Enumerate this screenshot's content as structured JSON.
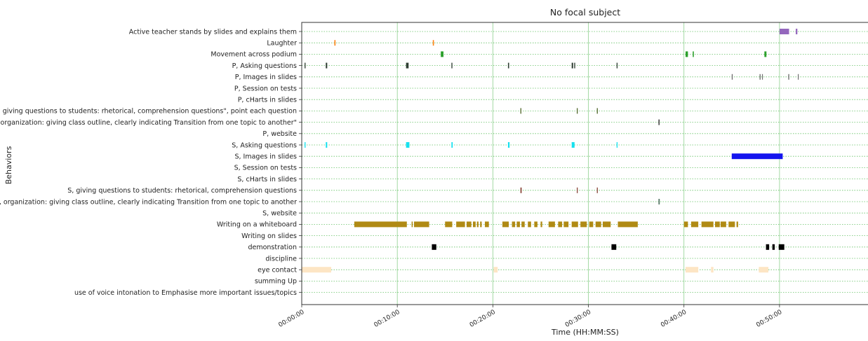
{
  "chart_data": {
    "type": "broken_barh",
    "title": "No focal subject",
    "xlabel": "Time (HH:MM:SS)",
    "ylabel": "Behaviors",
    "xlim": [
      0,
      3560
    ],
    "x_unit": "seconds",
    "grid": true,
    "x_ticks": [
      {
        "value": 0,
        "label": "00:00:00"
      },
      {
        "value": 600,
        "label": "00:10:00"
      },
      {
        "value": 1200,
        "label": "00:20:00"
      },
      {
        "value": 1800,
        "label": "00:30:00"
      },
      {
        "value": 2400,
        "label": "00:40:00"
      },
      {
        "value": 3000,
        "label": "00:50:00"
      }
    ],
    "categories": [
      {
        "label": "Active teacher stands by slides and explains them",
        "color": "#9467bd",
        "intervals": [
          [
            3000,
            3060
          ],
          [
            3102,
            3112
          ]
        ]
      },
      {
        "label": "Laughter",
        "color": "#ff7f0e",
        "intervals": [
          [
            205,
            212
          ],
          [
            823,
            830
          ]
        ]
      },
      {
        "label": "Movement across podium",
        "color": "#2ca02c",
        "intervals": [
          [
            873,
            890
          ],
          [
            2410,
            2425
          ],
          [
            2455,
            2462
          ],
          [
            2905,
            2918
          ]
        ]
      },
      {
        "label": "P, Asking questions",
        "color": "#2f3f33",
        "intervals": [
          [
            18,
            24
          ],
          [
            151,
            160
          ],
          [
            655,
            671
          ],
          [
            940,
            946
          ],
          [
            1295,
            1302
          ],
          [
            1695,
            1704
          ],
          [
            1711,
            1717
          ],
          [
            1977,
            1983
          ]
        ]
      },
      {
        "label": "P, Images in slides",
        "color": "#707070",
        "intervals": [
          [
            2700,
            2706
          ],
          [
            2875,
            2881
          ],
          [
            2890,
            2895
          ],
          [
            3055,
            3061
          ],
          [
            3115,
            3120
          ]
        ]
      },
      {
        "label": "P, Session on tests",
        "color": "#707070",
        "intervals": []
      },
      {
        "label": "P, cHarts in slides",
        "color": "#707070",
        "intervals": []
      },
      {
        "label": "P, giving questions to students: rhetorical, comprehension questions\", point each question",
        "color": "#556b2f",
        "intervals": [
          [
            1373,
            1379
          ],
          [
            1727,
            1733
          ],
          [
            1853,
            1859
          ]
        ]
      },
      {
        "label": "P, organization: giving class outline, clearly indicating Transition from one topic to another\"",
        "color": "#444444",
        "intervals": [
          [
            2240,
            2247
          ]
        ]
      },
      {
        "label": "P, website",
        "color": "#707070",
        "intervals": []
      },
      {
        "label": "S, Asking questions",
        "color": "#17e1ef",
        "intervals": [
          [
            18,
            24
          ],
          [
            151,
            160
          ],
          [
            655,
            676
          ],
          [
            940,
            948
          ],
          [
            1295,
            1305
          ],
          [
            1695,
            1713
          ],
          [
            1977,
            1983
          ]
        ]
      },
      {
        "label": "S, Images in slides",
        "color": "#1414ee",
        "intervals": [
          [
            2700,
            3020
          ]
        ]
      },
      {
        "label": "S, Session on tests",
        "color": "#707070",
        "intervals": []
      },
      {
        "label": "S, cHarts in slides",
        "color": "#707070",
        "intervals": []
      },
      {
        "label": "S, giving questions to students: rhetorical, comprehension questions",
        "color": "#8c4a3e",
        "intervals": [
          [
            1373,
            1381
          ],
          [
            1727,
            1733
          ],
          [
            1853,
            1859
          ]
        ]
      },
      {
        "label": "S, organization: giving class outline, clearly indicating Transition from one topic to another",
        "color": "#5a7a6a",
        "intervals": [
          [
            2240,
            2248
          ]
        ]
      },
      {
        "label": "S, website",
        "color": "#707070",
        "intervals": []
      },
      {
        "label": "Writing on a whiteboard",
        "color": "#b08a14",
        "intervals": [
          [
            330,
            660
          ],
          [
            690,
            697
          ],
          [
            705,
            800
          ],
          [
            900,
            945
          ],
          [
            970,
            1025
          ],
          [
            1035,
            1065
          ],
          [
            1075,
            1092
          ],
          [
            1100,
            1110
          ],
          [
            1120,
            1130
          ],
          [
            1150,
            1175
          ],
          [
            1260,
            1300
          ],
          [
            1320,
            1340
          ],
          [
            1350,
            1370
          ],
          [
            1380,
            1400
          ],
          [
            1420,
            1440
          ],
          [
            1460,
            1480
          ],
          [
            1500,
            1510
          ],
          [
            1550,
            1590
          ],
          [
            1610,
            1635
          ],
          [
            1645,
            1675
          ],
          [
            1695,
            1735
          ],
          [
            1750,
            1790
          ],
          [
            1805,
            1830
          ],
          [
            1845,
            1880
          ],
          [
            1890,
            1940
          ],
          [
            1985,
            2110
          ],
          [
            2400,
            2425
          ],
          [
            2445,
            2490
          ],
          [
            2510,
            2585
          ],
          [
            2595,
            2625
          ],
          [
            2630,
            2665
          ],
          [
            2680,
            2720
          ],
          [
            2730,
            2740
          ]
        ]
      },
      {
        "label": "Writing on slides",
        "color": "#707070",
        "intervals": []
      },
      {
        "label": "demonstration",
        "color": "#000000",
        "intervals": [
          [
            817,
            845
          ],
          [
            1945,
            1975
          ],
          [
            2915,
            2935
          ],
          [
            2955,
            2970
          ],
          [
            2995,
            3030
          ]
        ]
      },
      {
        "label": "discipline",
        "color": "#707070",
        "intervals": []
      },
      {
        "label": "eye contact",
        "color": "#fde5c4",
        "intervals": [
          [
            0,
            185
          ],
          [
            1205,
            1230
          ],
          [
            2410,
            2490
          ],
          [
            2570,
            2585
          ],
          [
            2870,
            2930
          ]
        ]
      },
      {
        "label": "summing Up",
        "color": "#707070",
        "intervals": []
      },
      {
        "label": "use of voice intonation to Emphasise more important issues/topics",
        "color": "#707070",
        "intervals": []
      }
    ]
  }
}
